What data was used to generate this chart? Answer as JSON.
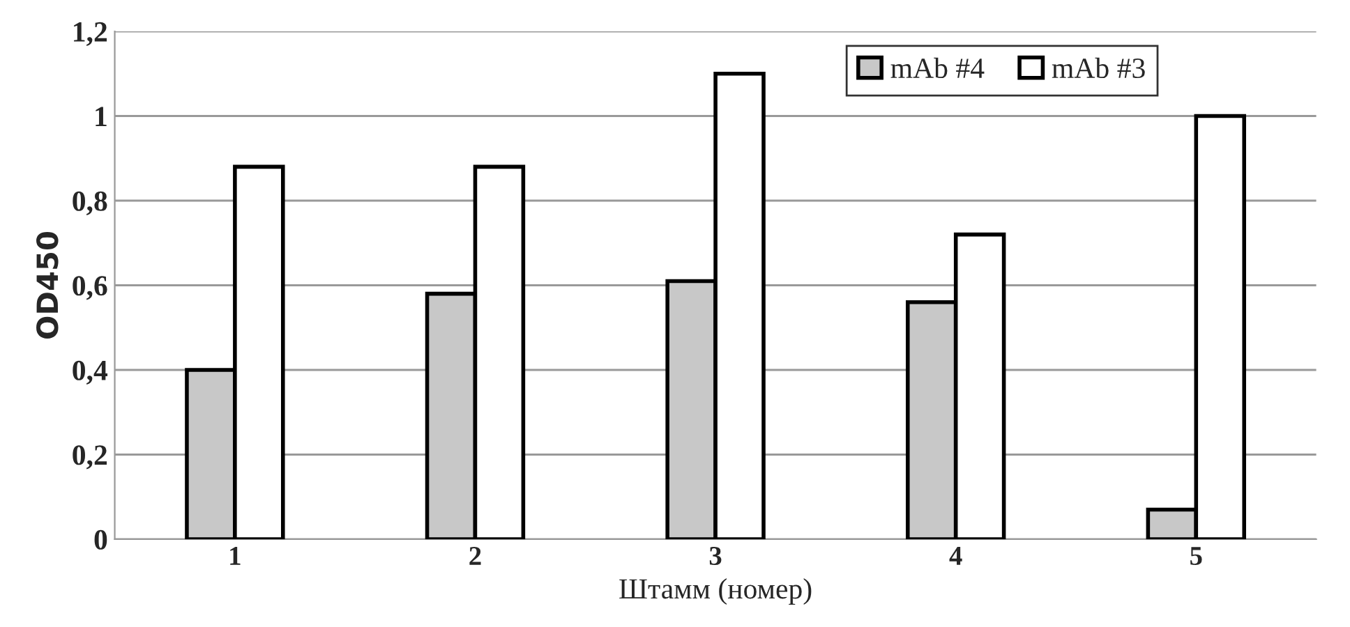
{
  "chart_data": {
    "type": "bar",
    "xlabel": "Штамм (номер)",
    "ylabel": "OD450",
    "categories": [
      "1",
      "2",
      "3",
      "4",
      "5"
    ],
    "series": [
      {
        "name": "mAb #4",
        "color": "#c8c8c8",
        "values": [
          0.4,
          0.58,
          0.61,
          0.56,
          0.07
        ]
      },
      {
        "name": "mAb #3",
        "color": "#ffffff",
        "values": [
          0.88,
          0.88,
          1.1,
          0.72,
          1.0
        ]
      }
    ],
    "ylim": [
      0,
      1.2
    ],
    "yticks": [
      0,
      {
        "value": 0.2,
        "label": "0,2"
      },
      {
        "value": 0.4,
        "label": "0,4"
      },
      {
        "value": 0.6,
        "label": "0,6"
      },
      {
        "value": 0.8,
        "label": "0,8"
      },
      1,
      {
        "value": 1.2,
        "label": "1,2"
      }
    ],
    "grid": "y",
    "legend": "top right"
  }
}
